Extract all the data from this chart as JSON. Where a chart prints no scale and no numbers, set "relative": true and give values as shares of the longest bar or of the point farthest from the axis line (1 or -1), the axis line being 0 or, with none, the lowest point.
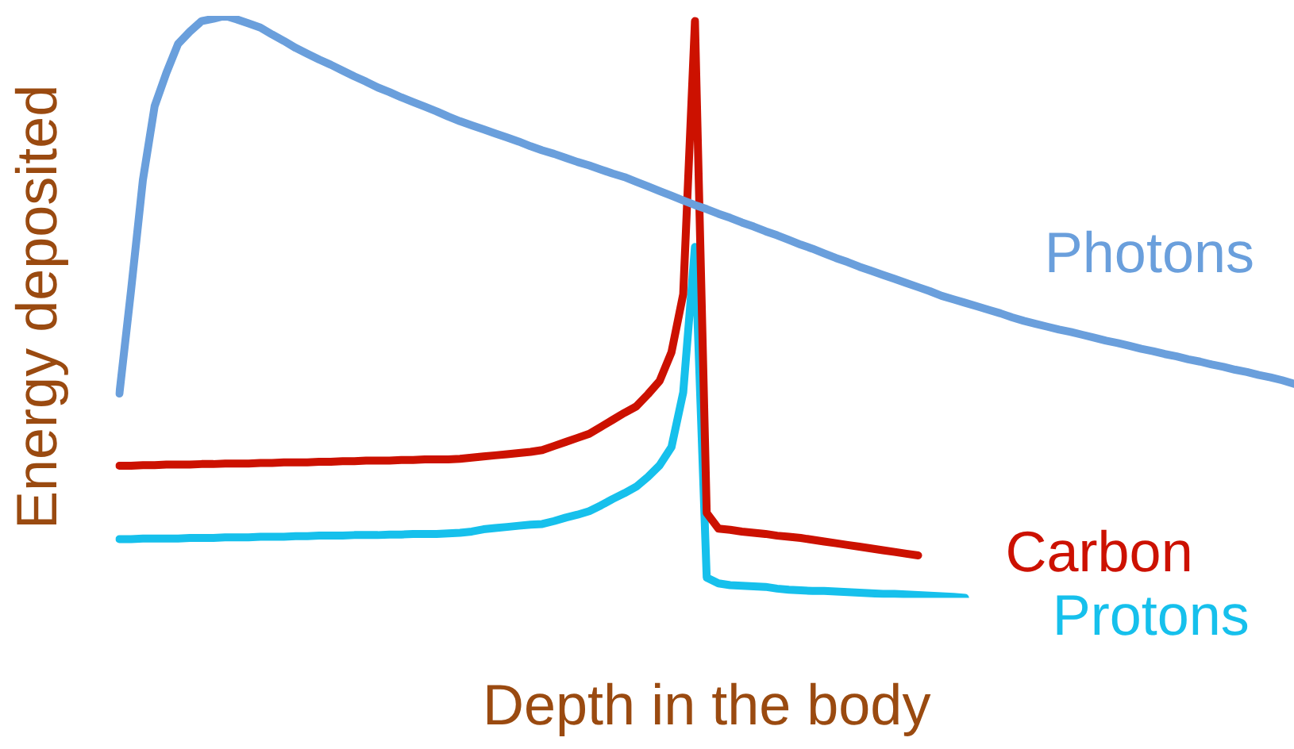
{
  "chart_data": {
    "type": "line",
    "relative": true,
    "xlabel": "Depth in the body",
    "ylabel": "Energy deposited",
    "grid": false,
    "legend": false,
    "marker": "none",
    "line_style": "solid",
    "categories": [
      null,
      null,
      null,
      null,
      null,
      null,
      null,
      null,
      null,
      null,
      null,
      null,
      null,
      null,
      null,
      null,
      null,
      null,
      null,
      null,
      null,
      null,
      null,
      null,
      null,
      null,
      null,
      null,
      null,
      null,
      null,
      null,
      null,
      null,
      null,
      null,
      null,
      null,
      null,
      null,
      null,
      null,
      null,
      null,
      null,
      null,
      null,
      null,
      null,
      null,
      null,
      null,
      null,
      null,
      null,
      null,
      null,
      null,
      null,
      null,
      null,
      null,
      null,
      null,
      null,
      null,
      null,
      null,
      null,
      null,
      null,
      null,
      null,
      null,
      null,
      null,
      null,
      null,
      null,
      null,
      null,
      null,
      null,
      null,
      null,
      null,
      null,
      null,
      null,
      null,
      null,
      null,
      null,
      null,
      null,
      null,
      null,
      null,
      null,
      null,
      null
    ],
    "series": [
      {
        "name": "Photons",
        "color": "#6a9fdc",
        "values": [
          0.351,
          0.53,
          0.718,
          0.845,
          0.902,
          0.952,
          0.973,
          0.991,
          0.995,
          1,
          0.994,
          0.987,
          0.98,
          0.968,
          0.957,
          0.945,
          0.935,
          0.925,
          0.916,
          0.906,
          0.896,
          0.887,
          0.877,
          0.869,
          0.86,
          0.852,
          0.844,
          0.836,
          0.827,
          0.819,
          0.812,
          0.805,
          0.798,
          0.791,
          0.784,
          0.776,
          0.769,
          0.763,
          0.756,
          0.749,
          0.743,
          0.736,
          0.729,
          0.723,
          0.715,
          0.707,
          0.699,
          0.691,
          0.683,
          0.675,
          0.668,
          0.66,
          0.653,
          0.645,
          0.638,
          0.63,
          0.623,
          0.615,
          0.607,
          0.6,
          0.592,
          0.584,
          0.577,
          0.569,
          0.562,
          0.555,
          0.548,
          0.541,
          0.534,
          0.527,
          0.519,
          0.513,
          0.507,
          0.501,
          0.495,
          0.489,
          0.482,
          0.476,
          0.471,
          0.466,
          0.461,
          0.457,
          0.452,
          0.447,
          0.442,
          0.438,
          0.433,
          0.428,
          0.424,
          0.419,
          0.415,
          0.41,
          0.406,
          0.401,
          0.397,
          0.392,
          0.388,
          0.383,
          0.379,
          0.374,
          0.368
        ]
      },
      {
        "name": "Carbon",
        "color": "#cc1100",
        "values": [
          0.227,
          0.227,
          0.228,
          0.228,
          0.229,
          0.229,
          0.229,
          0.23,
          0.23,
          0.231,
          0.231,
          0.231,
          0.232,
          0.232,
          0.233,
          0.233,
          0.233,
          0.234,
          0.234,
          0.235,
          0.235,
          0.236,
          0.236,
          0.236,
          0.237,
          0.237,
          0.238,
          0.238,
          0.238,
          0.239,
          0.241,
          0.243,
          0.245,
          0.247,
          0.249,
          0.251,
          0.254,
          0.261,
          0.268,
          0.275,
          0.282,
          0.294,
          0.306,
          0.318,
          0.329,
          0.35,
          0.373,
          0.422,
          0.522,
          0.991,
          0.146,
          0.119,
          0.117,
          0.114,
          0.112,
          0.11,
          0.107,
          0.105,
          0.103,
          0.1,
          0.097,
          0.094,
          0.091,
          0.088,
          0.085,
          0.082,
          0.079,
          0.076,
          0.073,
          null,
          null,
          null,
          null,
          null,
          null,
          null,
          null,
          null,
          null,
          null,
          null,
          null,
          null,
          null,
          null,
          null,
          null,
          null,
          null,
          null,
          null,
          null,
          null,
          null,
          null,
          null,
          null,
          null,
          null,
          null,
          null
        ]
      },
      {
        "name": "Protons",
        "color": "#16c0ec",
        "values": [
          0.101,
          0.101,
          0.102,
          0.102,
          0.102,
          0.102,
          0.103,
          0.103,
          0.103,
          0.104,
          0.104,
          0.104,
          0.105,
          0.105,
          0.105,
          0.106,
          0.106,
          0.107,
          0.107,
          0.107,
          0.108,
          0.108,
          0.108,
          0.109,
          0.109,
          0.11,
          0.11,
          0.11,
          0.111,
          0.112,
          0.114,
          0.118,
          0.12,
          0.122,
          0.124,
          0.126,
          0.127,
          0.132,
          0.138,
          0.143,
          0.149,
          0.159,
          0.17,
          0.18,
          0.191,
          0.208,
          0.228,
          0.259,
          0.353,
          0.603,
          0.035,
          0.025,
          0.022,
          0.021,
          0.02,
          0.019,
          0.016,
          0.014,
          0.013,
          0.012,
          0.012,
          0.011,
          0.01,
          0.009,
          0.008,
          0.007,
          0.007,
          0.006,
          0.005,
          0.004,
          0.003,
          0.002,
          0,
          null,
          null,
          null,
          null,
          null,
          null,
          null,
          null,
          null,
          null,
          null,
          null,
          null,
          null,
          null,
          null,
          null,
          null,
          null,
          null,
          null,
          null,
          null,
          null,
          null,
          null,
          null,
          null
        ]
      }
    ]
  }
}
